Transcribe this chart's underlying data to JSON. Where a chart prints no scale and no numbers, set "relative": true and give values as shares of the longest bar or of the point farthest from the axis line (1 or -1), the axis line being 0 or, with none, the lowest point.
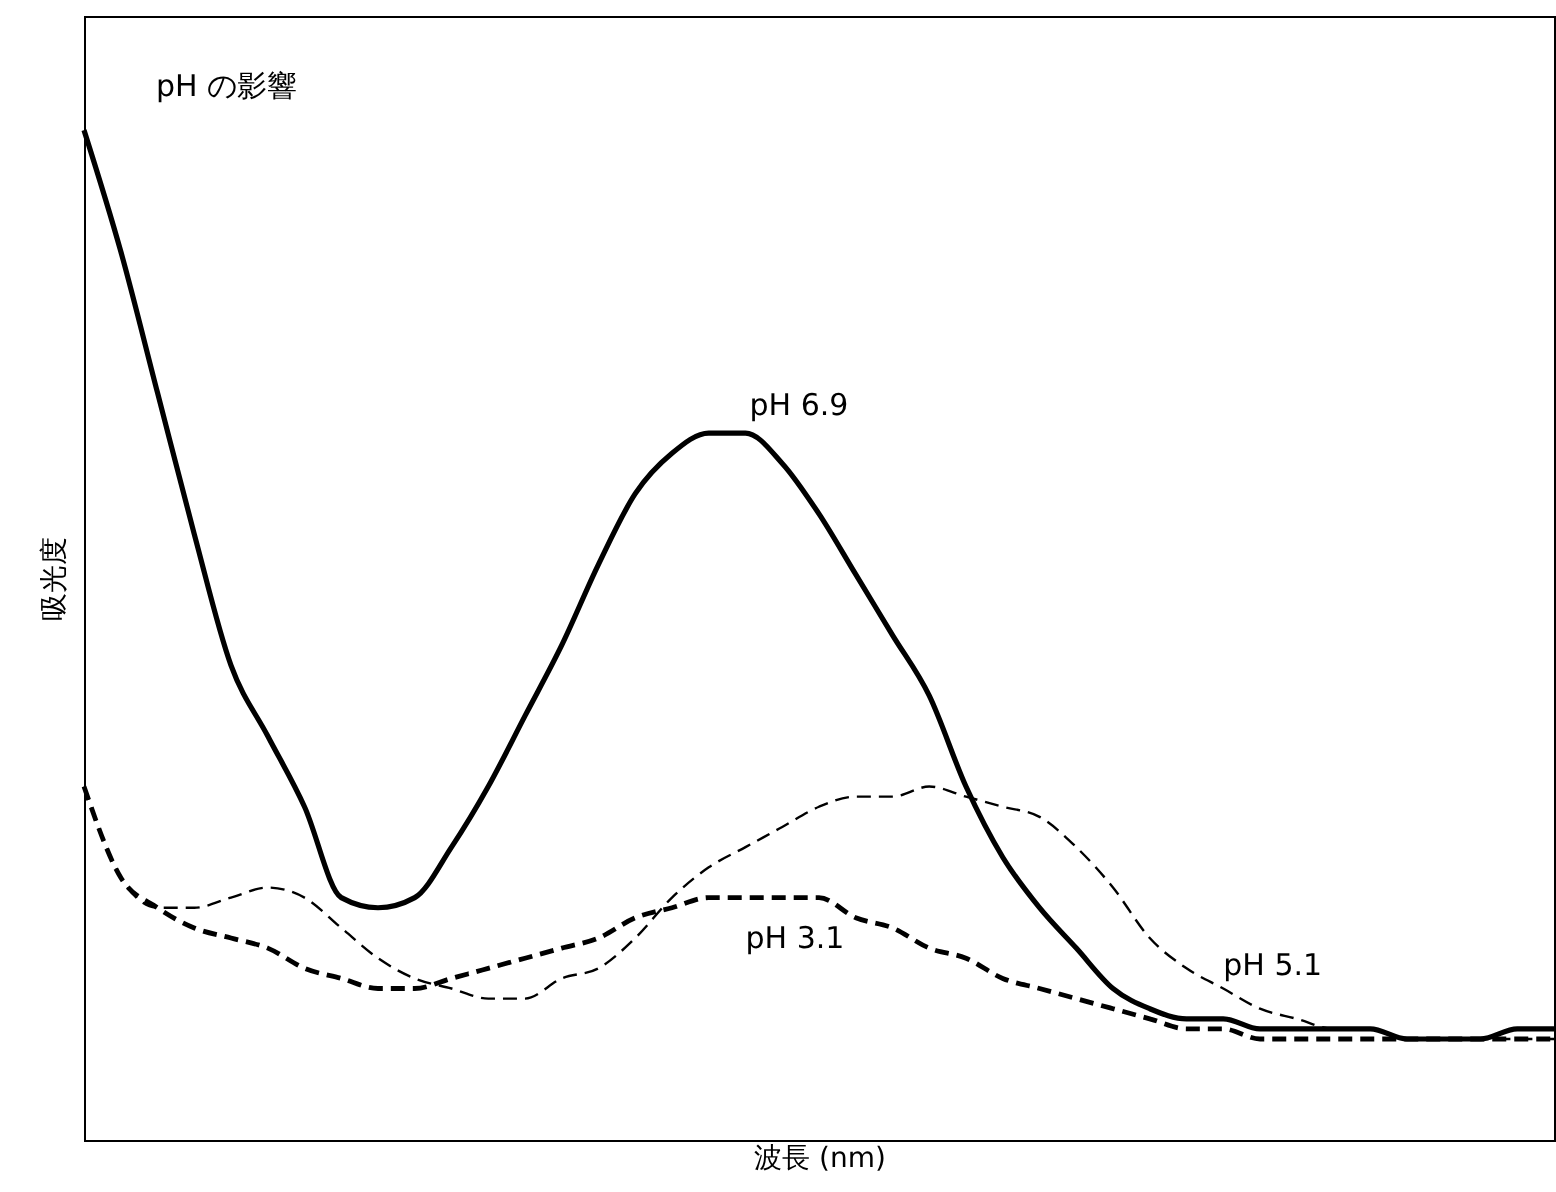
{
  "chart_data": {
    "type": "line",
    "title": "pH の影響",
    "xlabel": "波長 (nm)",
    "ylabel": "吸光度",
    "relative": true,
    "tick_labels": false,
    "categories": [
      null,
      null,
      null,
      null,
      null,
      null,
      null,
      null,
      null,
      null,
      null,
      null,
      null,
      null,
      null,
      null,
      null,
      null,
      null,
      null,
      null,
      null,
      null,
      null,
      null,
      null,
      null,
      null,
      null,
      null,
      null,
      null,
      null,
      null,
      null,
      null,
      null,
      null,
      null,
      null,
      null
    ],
    "series": [
      {
        "name": "pH 6.9",
        "color": "#000000",
        "line_style": "solid",
        "values": [
          1.0,
          0.88,
          0.74,
          0.6,
          0.47,
          0.4,
          0.33,
          0.24,
          0.23,
          0.24,
          0.29,
          0.35,
          0.42,
          0.49,
          0.57,
          0.64,
          0.68,
          0.7,
          0.7,
          0.67,
          0.62,
          0.56,
          0.5,
          0.44,
          0.35,
          0.28,
          0.23,
          0.19,
          0.15,
          0.13,
          0.12,
          0.12,
          0.11,
          0.11,
          0.11,
          0.11,
          0.1,
          0.1,
          0.1,
          0.11,
          0.11
        ]
      },
      {
        "name": "pH 5.1",
        "color": "#000000",
        "line_style": "dashed",
        "values": [
          0.35,
          0.26,
          0.23,
          0.23,
          0.24,
          0.25,
          0.24,
          0.21,
          0.18,
          0.16,
          0.15,
          0.14,
          0.14,
          0.16,
          0.17,
          0.2,
          0.24,
          0.27,
          0.29,
          0.31,
          0.33,
          0.34,
          0.34,
          0.35,
          0.34,
          0.33,
          0.32,
          0.29,
          0.25,
          0.2,
          0.17,
          0.15,
          0.13,
          0.12,
          0.11,
          0.11,
          0.1,
          0.1,
          0.1,
          0.1,
          0.1
        ]
      },
      {
        "name": "pH 3.1",
        "color": "#000000",
        "line_style": "dashed",
        "values": [
          0.35,
          0.26,
          0.23,
          0.21,
          0.2,
          0.19,
          0.17,
          0.16,
          0.15,
          0.15,
          0.16,
          0.17,
          0.18,
          0.19,
          0.2,
          0.22,
          0.23,
          0.24,
          0.24,
          0.24,
          0.24,
          0.22,
          0.21,
          0.19,
          0.18,
          0.16,
          0.15,
          0.14,
          0.13,
          0.12,
          0.11,
          0.11,
          0.1,
          0.1,
          0.1,
          0.1,
          0.1,
          0.1,
          0.1,
          0.1,
          0.1
        ]
      }
    ]
  }
}
